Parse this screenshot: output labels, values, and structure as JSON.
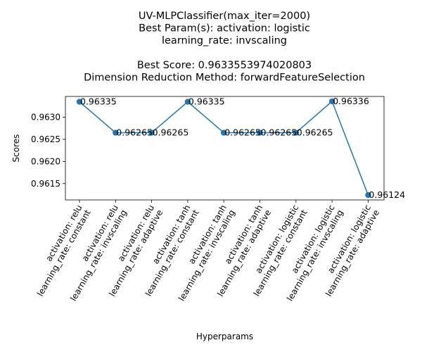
{
  "chart_data": {
    "type": "line",
    "title_lines": [
      "UV-MLPClassifier(max_iter=2000)",
      "Best Param(s): activation: logistic",
      "learning_rate: invscaling",
      "",
      "Best Score: 0.9633553974020803",
      "Dimension Reduction Method: forwardFeatureSelection"
    ],
    "xlabel": "Hyperparams",
    "ylabel": "Scores",
    "categories": [
      [
        "activation: relu",
        "learning_rate: constant"
      ],
      [
        "activation: relu",
        "learning_rate: invscaling"
      ],
      [
        "activation: relu",
        "learning_rate: adaptive"
      ],
      [
        "activation: tanh",
        "learning_rate: constant"
      ],
      [
        "activation: tanh",
        "learning_rate: invscaling"
      ],
      [
        "activation: tanh",
        "learning_rate: adaptive"
      ],
      [
        "activation: logistic",
        "learning_rate: constant"
      ],
      [
        "activation: logistic",
        "learning_rate: invscaling"
      ],
      [
        "activation: logistic",
        "learning_rate: adaptive"
      ]
    ],
    "values": [
      0.96335,
      0.96265,
      0.96265,
      0.96335,
      0.96265,
      0.96265,
      0.96265,
      0.96336,
      0.96124
    ],
    "data_labels": [
      "0.96335",
      "0.96265",
      "0.96265",
      "0.96335",
      "0.96265",
      "0.96265",
      "0.96265",
      "0.96336",
      "0.96124"
    ],
    "yticks": [
      0.9615,
      0.962,
      0.9625,
      0.963
    ],
    "ytick_labels": [
      "0.9615",
      "0.9620",
      "0.9625",
      "0.9630"
    ],
    "ylim": [
      0.96113,
      0.96347
    ],
    "grid": false,
    "colors": {
      "line": "#1f77b4",
      "marker": "#1f77b4"
    }
  }
}
